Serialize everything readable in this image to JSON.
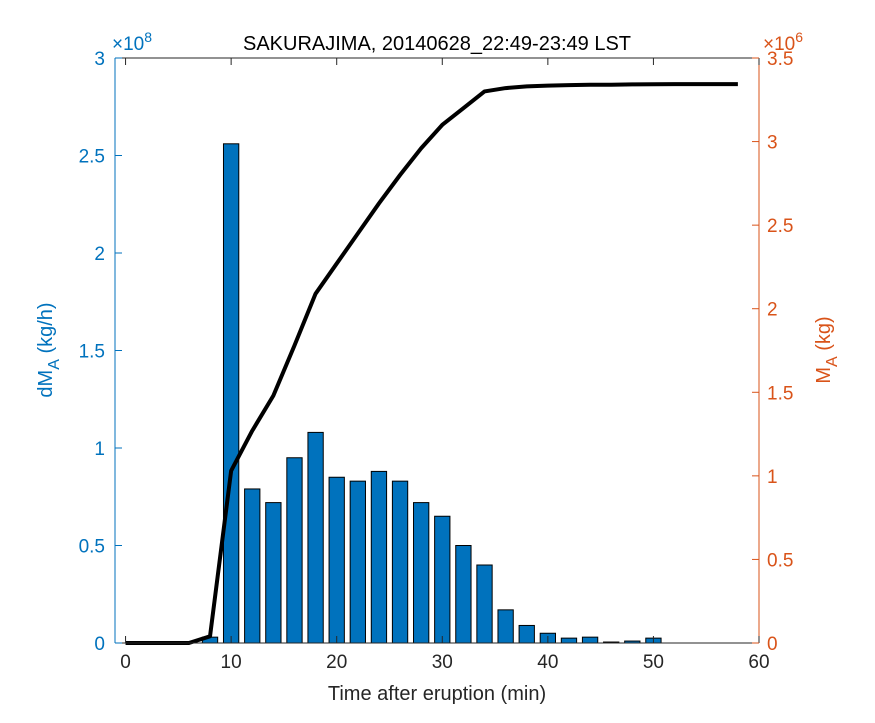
{
  "chart_data": {
    "type": "bar",
    "title": "SAKURAJIMA, 20140628_22:49-23:49 LST",
    "xlabel": "Time after eruption (min)",
    "xlim": [
      -1,
      60
    ],
    "xticks": [
      0,
      10,
      20,
      30,
      40,
      50,
      60
    ],
    "y_left": {
      "label_main": "dM",
      "label_sub": "A",
      "label_unit": " (kg/h)",
      "exponent_label": "×10",
      "exponent_power": "8",
      "ylim": [
        0,
        3
      ],
      "ticks": [
        0,
        0.5,
        1,
        1.5,
        2,
        2.5,
        3
      ],
      "tick_labels": [
        "0",
        "0.5",
        "1",
        "1.5",
        "2",
        "2.5",
        "3"
      ],
      "color": "#0072bd"
    },
    "y_right": {
      "label_main": "M",
      "label_sub": "A",
      "label_unit": " (kg)",
      "exponent_label": "×10",
      "exponent_power": "6",
      "ylim": [
        0,
        3.5
      ],
      "ticks": [
        0,
        0.5,
        1,
        1.5,
        2,
        2.5,
        3,
        3.5
      ],
      "tick_labels": [
        "0",
        "0.5",
        "1",
        "1.5",
        "2",
        "2.5",
        "3",
        "3.5"
      ],
      "color": "#d95319"
    },
    "bars": {
      "color": "#0072bd",
      "x": [
        0,
        2,
        4,
        6,
        8,
        10,
        12,
        14,
        16,
        18,
        20,
        22,
        24,
        26,
        28,
        30,
        32,
        34,
        36,
        38,
        40,
        42,
        44,
        46,
        48,
        50,
        52,
        54,
        56,
        58
      ],
      "values": [
        0,
        0,
        0,
        0,
        0.03,
        2.56,
        0.79,
        0.72,
        0.95,
        1.08,
        0.85,
        0.83,
        0.88,
        0.83,
        0.72,
        0.65,
        0.5,
        0.4,
        0.17,
        0.09,
        0.05,
        0.025,
        0.03,
        0.005,
        0.01,
        0.025,
        0,
        0,
        0,
        0
      ]
    },
    "line": {
      "color": "#000000",
      "x": [
        0,
        2,
        4,
        6,
        8,
        10,
        12,
        14,
        16,
        18,
        20,
        22,
        24,
        26,
        28,
        30,
        32,
        34,
        36,
        38,
        40,
        42,
        44,
        46,
        48,
        50,
        52,
        54,
        56,
        58
      ],
      "values": [
        0,
        0,
        0,
        0,
        0.04,
        1.03,
        1.27,
        1.48,
        1.78,
        2.09,
        2.27,
        2.45,
        2.63,
        2.8,
        2.96,
        3.1,
        3.2,
        3.3,
        3.32,
        3.33,
        3.335,
        3.338,
        3.34,
        3.34,
        3.342,
        3.343,
        3.344,
        3.344,
        3.344,
        3.344
      ]
    },
    "grid": false
  }
}
